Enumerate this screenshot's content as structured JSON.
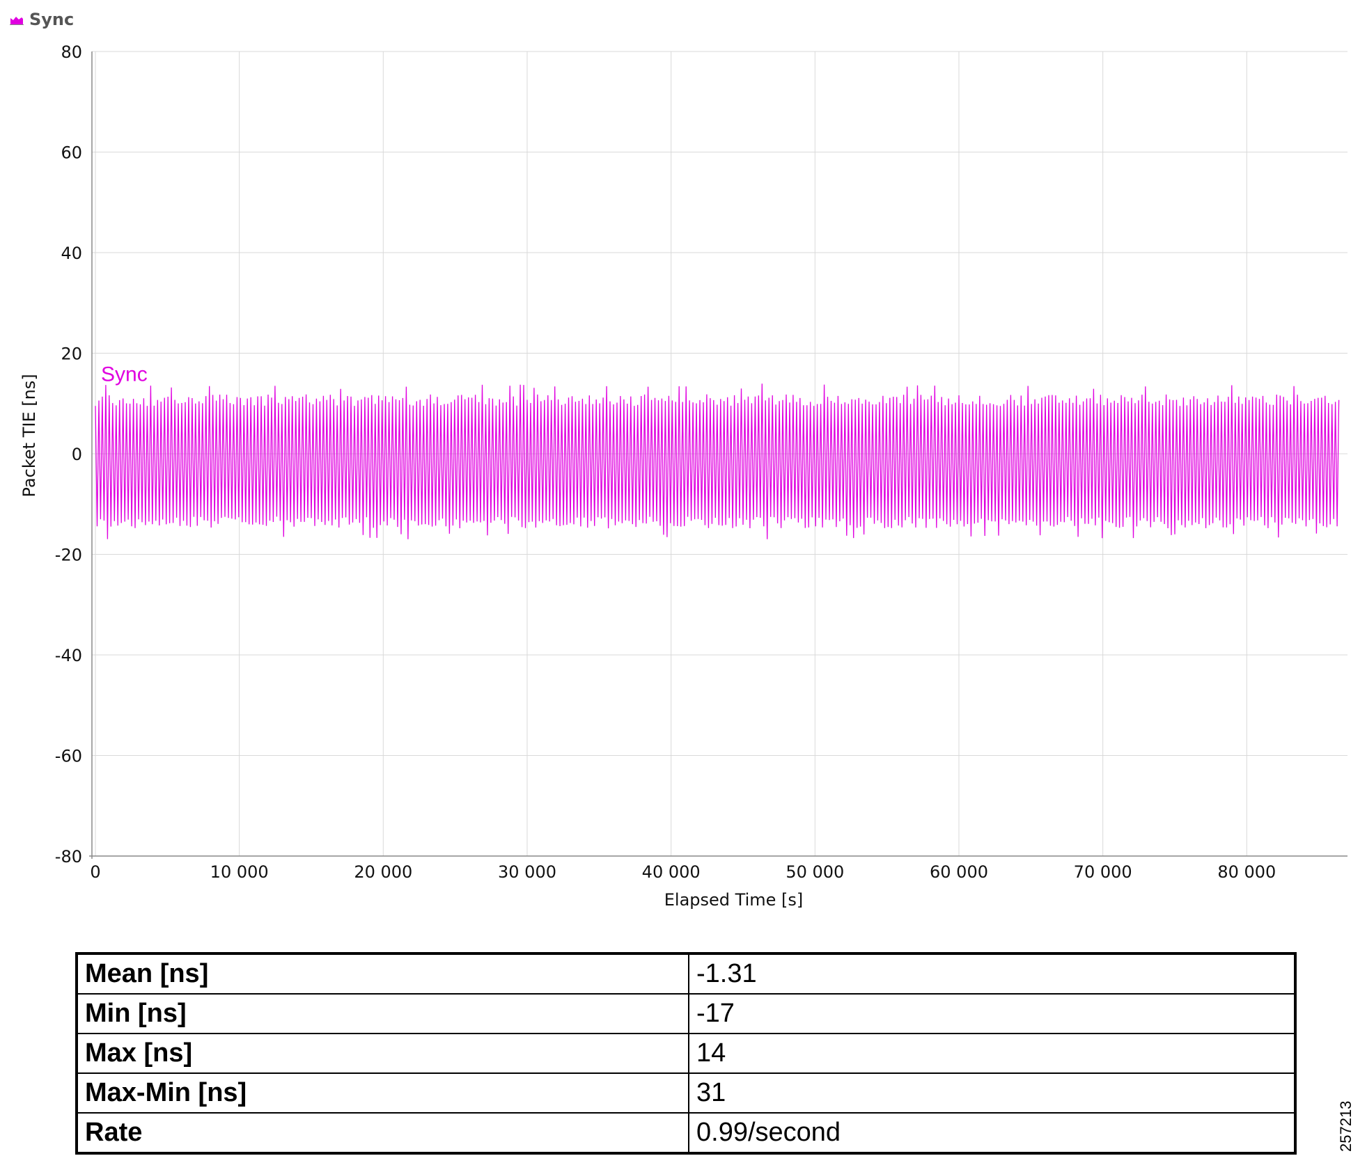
{
  "legend": {
    "label": "Sync",
    "icon": "area-chart-icon"
  },
  "chart_data": {
    "type": "line",
    "title": "",
    "xlabel": "Elapsed Time [s]",
    "ylabel": "Packet TIE [ns]",
    "xlim": [
      0,
      87000
    ],
    "ylim": [
      -80,
      80
    ],
    "xticks": [
      0,
      10000,
      20000,
      30000,
      40000,
      50000,
      60000,
      70000,
      80000
    ],
    "xtick_labels": [
      "0",
      "10 000",
      "20 000",
      "30 000",
      "40 000",
      "50 000",
      "60 000",
      "70 000",
      "80 000"
    ],
    "yticks": [
      80,
      60,
      40,
      20,
      0,
      -20,
      -40,
      -60,
      -80
    ],
    "ytick_labels": [
      "80",
      "60",
      "40",
      "20",
      "0",
      "-20",
      "-40",
      "-60",
      "-80"
    ],
    "grid": true,
    "series": [
      {
        "name": "Sync",
        "color": "#e000e0",
        "x_start": 0,
        "x_end": 86400,
        "y_min": -17,
        "y_max": 14,
        "y_mean": -1.31
      }
    ]
  },
  "stats": [
    {
      "label": "Mean [ns]",
      "value": "-1.31"
    },
    {
      "label": "Min [ns]",
      "value": "-17"
    },
    {
      "label": "Max [ns]",
      "value": "14"
    },
    {
      "label": "Max-Min [ns]",
      "value": "31"
    },
    {
      "label": "Rate",
      "value": "0.99/second"
    }
  ],
  "figure_id": "257213"
}
